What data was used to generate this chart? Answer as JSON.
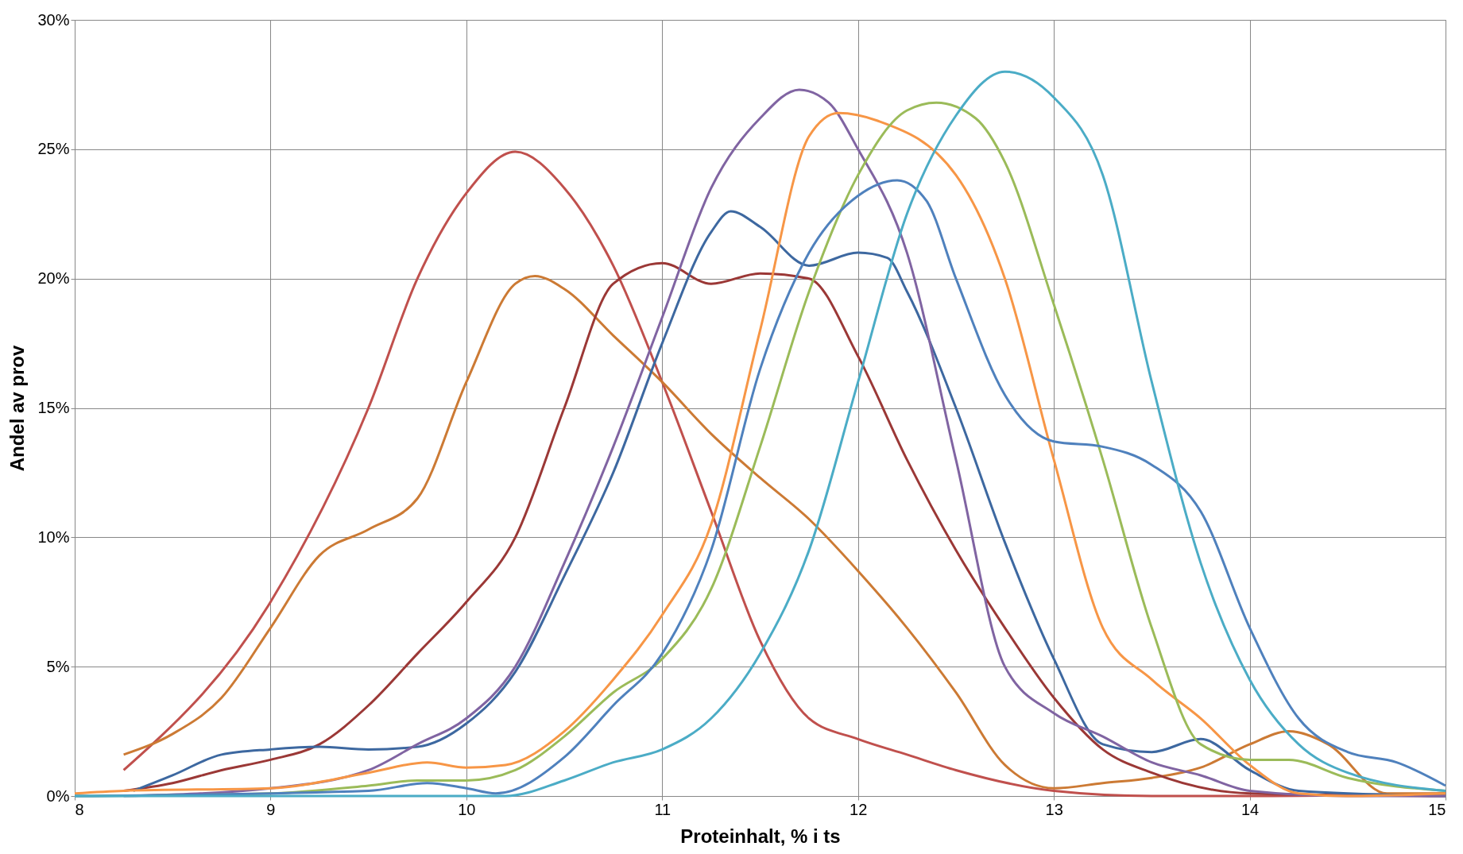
{
  "chart_data": {
    "type": "line",
    "xlabel": "Proteinhalt, % i ts",
    "ylabel": "Andel av prov",
    "xlim": [
      8,
      15
    ],
    "xticks": [
      8,
      9,
      10,
      11,
      12,
      13,
      14,
      15
    ],
    "ylim": [
      0,
      30
    ],
    "yticks": [
      {
        "value": 0,
        "label": "0%"
      },
      {
        "value": 5,
        "label": "5%"
      },
      {
        "value": 10,
        "label": "10%"
      },
      {
        "value": 15,
        "label": "15%"
      },
      {
        "value": 20,
        "label": "20%"
      },
      {
        "value": 25,
        "label": "25%"
      },
      {
        "value": 30,
        "label": "30%"
      }
    ],
    "grid": true,
    "legend": false,
    "marker": "none",
    "line_style": "solid",
    "series": [
      {
        "color": "#c0504d",
        "x": [
          8.25,
          9,
          9.5,
          9.75,
          10,
          10.25,
          10.5,
          10.75,
          11,
          11.25,
          11.5,
          11.75,
          12,
          12.25,
          12.5,
          13,
          13.5,
          14,
          15
        ],
        "values": [
          1,
          7.5,
          15,
          20,
          23.3,
          24.9,
          23.5,
          20.5,
          16,
          11,
          6,
          3,
          2.2,
          1.6,
          1,
          0.2,
          0,
          0,
          0.1
        ]
      },
      {
        "color": "#cc7a34",
        "x": [
          8.25,
          8.5,
          8.75,
          9,
          9.25,
          9.5,
          9.75,
          10,
          10.25,
          10.35,
          10.5,
          10.75,
          11,
          11.25,
          11.5,
          11.75,
          12,
          12.25,
          12.5,
          12.75,
          13,
          13.25,
          13.5,
          13.75,
          14,
          14.2,
          14.4,
          14.7,
          15
        ],
        "values": [
          1.6,
          2.4,
          3.8,
          6.5,
          9.3,
          10.3,
          11.5,
          16,
          19.8,
          20.1,
          19.6,
          17.8,
          16,
          14,
          12.3,
          10.7,
          8.7,
          6.5,
          4,
          1.2,
          0.3,
          0.5,
          0.7,
          1.1,
          2,
          2.5,
          2,
          0.1,
          0.1
        ]
      },
      {
        "color": "#9b3836",
        "x": [
          8.25,
          8.5,
          8.75,
          9,
          9.25,
          9.5,
          9.75,
          10,
          10.25,
          10.5,
          10.75,
          11,
          11.25,
          11.5,
          11.75,
          12,
          12.25,
          12.5,
          12.75,
          13,
          13.25,
          13.5,
          14,
          15
        ],
        "values": [
          0.2,
          0.5,
          1,
          1.4,
          2,
          3.5,
          5.5,
          7.5,
          10,
          15,
          19.8,
          20.6,
          19.8,
          20.2,
          20,
          17,
          13,
          9.5,
          6.5,
          3.8,
          1.8,
          0.9,
          0.1,
          0
        ]
      },
      {
        "color": "#3d68a0",
        "x": [
          8.3,
          8.5,
          8.75,
          9,
          9.25,
          9.5,
          9.75,
          10,
          10.25,
          10.5,
          10.75,
          11,
          11.25,
          11.35,
          11.5,
          11.75,
          12,
          12.15,
          12.25,
          12.5,
          12.75,
          13,
          13.25,
          13.5,
          13.75,
          14,
          14.25,
          15
        ],
        "values": [
          0.2,
          0.8,
          1.6,
          1.8,
          1.9,
          1.8,
          1.9,
          2.8,
          4.8,
          8.5,
          12.5,
          17.5,
          21.8,
          22.6,
          22,
          20.5,
          21,
          20.8,
          19.5,
          15,
          9.8,
          5.3,
          2,
          1.7,
          2.2,
          1,
          0.2,
          0
        ]
      },
      {
        "color": "#8064a2",
        "x": [
          8.25,
          9,
          9.5,
          9.75,
          10,
          10.25,
          10.5,
          10.75,
          11,
          11.25,
          11.5,
          11.7,
          11.85,
          12,
          12.25,
          12.5,
          12.75,
          13,
          13.25,
          13.5,
          13.75,
          14,
          14.5,
          15
        ],
        "values": [
          0,
          0.3,
          1,
          2,
          3,
          5,
          9,
          13.5,
          18.5,
          23.5,
          26.2,
          27.3,
          26.8,
          25,
          21,
          13,
          5,
          3.2,
          2.3,
          1.3,
          0.8,
          0.2,
          0,
          0
        ]
      },
      {
        "color": "#f79646",
        "x": [
          8,
          8.25,
          9,
          9.5,
          9.8,
          10,
          10.2,
          10.5,
          10.75,
          11,
          11.25,
          11.5,
          11.75,
          11.9,
          12.1,
          12.5,
          12.75,
          13,
          13.25,
          13.5,
          13.75,
          14,
          14.25,
          14.5,
          15
        ],
        "values": [
          0.1,
          0.2,
          0.3,
          0.9,
          1.3,
          1.1,
          1.2,
          2.5,
          4.5,
          7,
          10.5,
          18,
          25.5,
          26.4,
          26.1,
          24,
          20,
          13,
          6.5,
          4.5,
          3,
          1.2,
          0.1,
          0,
          0.1
        ]
      },
      {
        "color": "#9bbb59",
        "x": [
          8,
          9,
          9.5,
          9.75,
          10,
          10.25,
          10.5,
          10.75,
          11,
          11.25,
          11.5,
          11.75,
          12,
          12.25,
          12.4,
          12.6,
          12.75,
          13,
          13.25,
          13.5,
          13.75,
          14,
          14.2,
          14.5,
          15
        ],
        "values": [
          0,
          0.1,
          0.4,
          0.6,
          0.6,
          1,
          2.3,
          4,
          5.3,
          8,
          13.5,
          19.5,
          24,
          26.5,
          26.8,
          26.2,
          24.5,
          19,
          13,
          6.5,
          2,
          1.4,
          1.4,
          0.7,
          0.2
        ]
      },
      {
        "color": "#4f81bd",
        "x": [
          8,
          9.5,
          9.8,
          10,
          10.15,
          10.5,
          10.75,
          11,
          11.25,
          11.5,
          11.75,
          12,
          12.2,
          12.35,
          12.5,
          12.75,
          13,
          13.25,
          13.5,
          13.75,
          14,
          14.25,
          14.5,
          14.75,
          15
        ],
        "values": [
          0,
          0.2,
          0.5,
          0.3,
          0.1,
          1.5,
          3.5,
          5.5,
          9.5,
          16.5,
          21,
          23.2,
          23.8,
          23,
          20,
          15.5,
          13.7,
          13.5,
          12.8,
          11,
          6.5,
          3,
          1.7,
          1.3,
          0.4
        ]
      },
      {
        "color": "#4bacc6",
        "x": [
          8,
          10.2,
          10.5,
          10.75,
          11,
          11.25,
          11.5,
          11.75,
          12,
          12.25,
          12.5,
          12.75,
          13,
          13.25,
          13.5,
          13.75,
          14,
          14.25,
          14.5,
          15
        ],
        "values": [
          0,
          0,
          0.6,
          1.3,
          1.8,
          3,
          5.5,
          9.5,
          16,
          22.5,
          26.3,
          28,
          27,
          24,
          16,
          9,
          4.5,
          2,
          0.9,
          0.2
        ]
      }
    ]
  }
}
